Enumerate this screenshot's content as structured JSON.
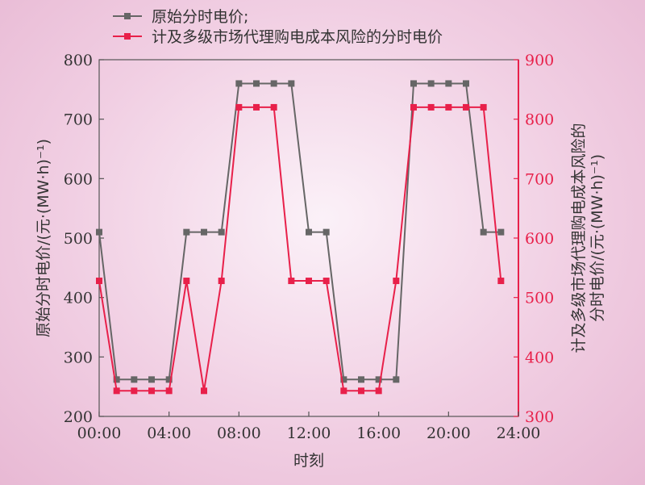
{
  "chart_data": {
    "type": "line",
    "x_tick_labels": [
      "00:00",
      "04:00",
      "08:00",
      "12:00",
      "16:00",
      "20:00",
      "24:00"
    ],
    "xlabel": "时刻",
    "ylabel_left": "原始分时电价/(元·(MW·h)⁻¹)",
    "ylabel_right_line1": "计及多级市场代理购电成本风险的",
    "ylabel_right_line2": "分时电价/(元·(MW·h)⁻¹)",
    "x_range_hours": [
      0,
      24
    ],
    "ylim_left": [
      200,
      800
    ],
    "ylim_right": [
      300,
      900
    ],
    "y_ticks_left": [
      200,
      300,
      400,
      500,
      600,
      700,
      800
    ],
    "y_ticks_right": [
      300,
      400,
      500,
      600,
      700,
      800,
      900
    ],
    "grid": false,
    "legend_position": "top-left",
    "series": [
      {
        "name": "原始分时电价;",
        "axis": "left",
        "color": "#666666",
        "x": [
          0,
          1,
          2,
          3,
          4,
          5,
          6,
          7,
          8,
          9,
          10,
          11,
          12,
          13,
          14,
          15,
          16,
          17,
          18,
          19,
          20,
          21,
          22,
          23
        ],
        "values": [
          510,
          262,
          262,
          262,
          262,
          510,
          510,
          510,
          760,
          760,
          760,
          760,
          510,
          510,
          262,
          262,
          262,
          262,
          760,
          760,
          760,
          760,
          510,
          510
        ]
      },
      {
        "name": "计及多级市场代理购电成本风险的分时电价",
        "axis": "right",
        "color": "#e8204a",
        "x": [
          0,
          1,
          2,
          3,
          4,
          5,
          6,
          7,
          8,
          9,
          10,
          11,
          12,
          13,
          14,
          15,
          16,
          17,
          18,
          19,
          20,
          21,
          22,
          23
        ],
        "values": [
          528,
          343,
          343,
          343,
          343,
          528,
          343,
          528,
          820,
          820,
          820,
          528,
          528,
          528,
          343,
          343,
          343,
          528,
          820,
          820,
          820,
          820,
          820,
          528
        ]
      }
    ]
  }
}
